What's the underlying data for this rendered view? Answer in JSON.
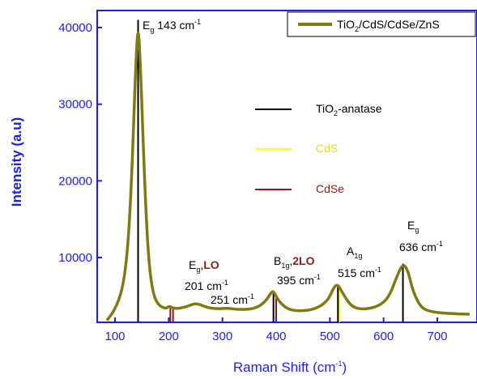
{
  "chart_data": {
    "type": "line",
    "xlabel": "Raman Shift (cm",
    "xlabel_sup": "-1",
    "xlabel_end": ")",
    "ylabel": "Intensity (a.u)",
    "xlim": [
      0,
      760
    ],
    "ylim": [
      0,
      42000
    ],
    "x_ticks": [
      100,
      200,
      300,
      400,
      500,
      600,
      700
    ],
    "y_ticks": [
      10000,
      20000,
      30000,
      40000
    ],
    "colors": {
      "spectrum": "#7f7a12",
      "axis": "#1f1fd6",
      "anatase": "#000000",
      "cds": "#ffff1a",
      "cdse": "#8a1a1a"
    },
    "series": [
      {
        "name": "TiO2/CdS/CdSe/ZnS",
        "points": [
          [
            85,
            1800
          ],
          [
            100,
            3200
          ],
          [
            115,
            6000
          ],
          [
            125,
            12000
          ],
          [
            132,
            22000
          ],
          [
            138,
            34000
          ],
          [
            143,
            41000
          ],
          [
            148,
            34000
          ],
          [
            155,
            20000
          ],
          [
            162,
            10000
          ],
          [
            170,
            5500
          ],
          [
            180,
            3800
          ],
          [
            195,
            3300
          ],
          [
            201,
            3700
          ],
          [
            210,
            3300
          ],
          [
            230,
            3500
          ],
          [
            251,
            4100
          ],
          [
            270,
            3500
          ],
          [
            290,
            3300
          ],
          [
            310,
            3400
          ],
          [
            330,
            3200
          ],
          [
            360,
            3300
          ],
          [
            380,
            4200
          ],
          [
            392,
            5600
          ],
          [
            396,
            5500
          ],
          [
            405,
            4300
          ],
          [
            420,
            3300
          ],
          [
            440,
            3000
          ],
          [
            470,
            3200
          ],
          [
            495,
            4200
          ],
          [
            508,
            6200
          ],
          [
            515,
            6500
          ],
          [
            525,
            5200
          ],
          [
            540,
            3600
          ],
          [
            560,
            3200
          ],
          [
            590,
            3600
          ],
          [
            610,
            4800
          ],
          [
            625,
            7600
          ],
          [
            636,
            9200
          ],
          [
            645,
            8400
          ],
          [
            655,
            5500
          ],
          [
            670,
            3400
          ],
          [
            690,
            2900
          ],
          [
            720,
            2700
          ],
          [
            760,
            2600
          ]
        ]
      }
    ],
    "reference_lines": {
      "anatase": [
        143,
        395,
        515,
        636
      ],
      "cds": [
        518
      ],
      "cdse": [
        203,
        208,
        400
      ]
    },
    "legend": {
      "spectrum": {
        "main": "TiO",
        "sub": "2",
        "rest": "/CdS/CdSe/ZnS"
      },
      "anatase": {
        "main": "TiO",
        "sub": "2",
        "rest": "-anatase"
      },
      "cds": "CdS",
      "cdse": "CdSe"
    },
    "annotations": {
      "eg143": {
        "main": "E",
        "sub": "g",
        "rest": " 143 cm",
        "sup": "-1"
      },
      "eg201": {
        "main": "E",
        "sub": "g",
        "sep": ",",
        "lo": "LO",
        "line2": "201 cm",
        "sup": "-1"
      },
      "c251": {
        "main": "251 cm",
        "sup": "-1"
      },
      "b395": {
        "main": "B",
        "sub": "1g",
        "sep": ",",
        "lo": "2LO",
        "line2": "395 cm",
        "sup": "-1"
      },
      "a515": {
        "main": "A",
        "sub": "1g",
        "line2": "515 cm",
        "sup": "-1"
      },
      "eg636": {
        "main": "E",
        "sub": "g",
        "line2": "636 cm",
        "sup": "-1"
      }
    }
  }
}
